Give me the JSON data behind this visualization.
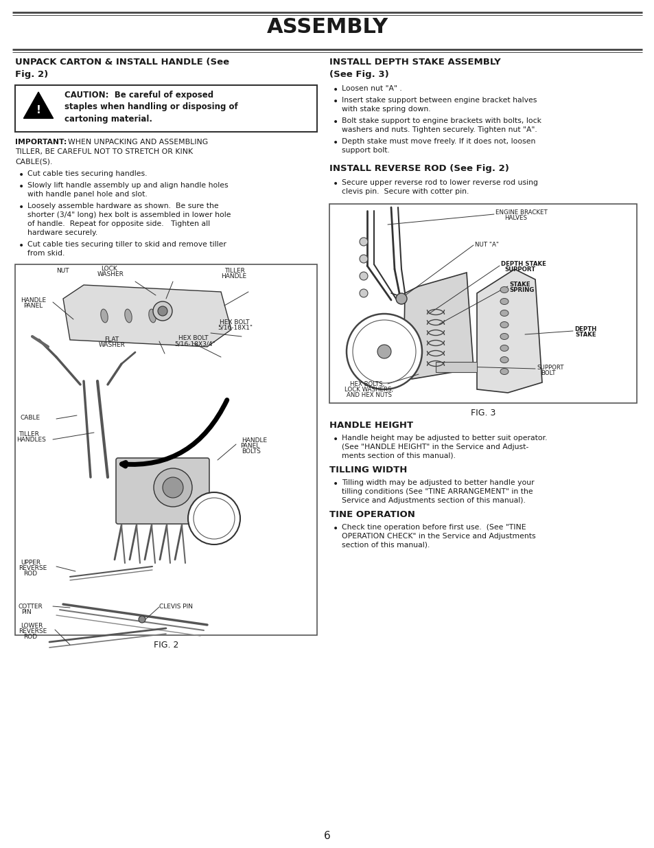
{
  "title": "ASSEMBLY",
  "bg_color": "#ffffff",
  "text_color": "#1a1a1a",
  "page_number": "6",
  "section1_title_line1": "UNPACK CARTON & INSTALL HANDLE (See",
  "section1_title_line2": "Fig. 2)",
  "caution_bold": "CAUTION:  Be careful of exposed\nstaples when handling or disposing of\ncartoning material.",
  "important_text": "IMPORTANT:  WHEN UNPACKING AND ASSEMBLING TILLER, BE CAREFUL NOT TO STRETCH OR KINK CABLE(S).",
  "left_bullets": [
    "Cut cable ties securing handles.",
    "Slowly lift handle assembly up and align handle holes\nwith handle panel hole and slot.",
    "Loosely assemble hardware as shown.  Be sure the shorter (3/4\" long) hex bolt is assembled in lower hole of handle.  Repeat for opposite side.   Tighten all hardware securely.",
    "Cut cable ties securing tiller to skid and remove tiller\nfrom skid."
  ],
  "fig2_caption": "FIG. 2",
  "section2_title_line1": "INSTALL DEPTH STAKE ASSEMBLY",
  "section2_title_line2": "(See Fig. 3)",
  "depth_bullets": [
    "Loosen nut \"A\" .",
    "Insert stake support between engine bracket halves\nwith stake spring down.",
    "Bolt stake support to engine brackets with bolts, lock washers and nuts. Tighten securely. Tighten nut \"A\".",
    "Depth stake must move freely. If it does not, loosen\nsupport bolt."
  ],
  "section3_title": "INSTALL REVERSE ROD (See Fig. 2)",
  "reverse_bullets": [
    "Secure upper reverse rod to lower reverse rod using\nclevis pin.  Secure with cotter pin."
  ],
  "fig3_caption": "FIG. 3",
  "section4_title": "HANDLE HEIGHT",
  "handle_height_bullets": [
    "Handle height may be adjusted to better suit operator. (See \"HANDLE HEIGHT\" in the Service and Adjust-\nments section of this manual)."
  ],
  "section5_title": "TILLING WIDTH",
  "tilling_width_bullets": [
    "Tilling width may be adjusted to better handle your tilling conditions (See \"TINE ARRANGEMENT\" in the Service and Adjustments section of this manual)."
  ],
  "section6_title": "TINE OPERATION",
  "tine_op_bullets": [
    "Check tine operation before first use.  (See \"TINE OPERATION CHECK\" in the Service and Adjustments\nsection of this manual)."
  ]
}
